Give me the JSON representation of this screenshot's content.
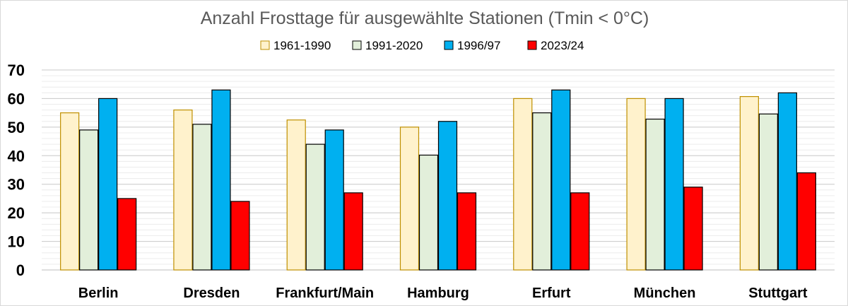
{
  "chart_data": {
    "type": "bar",
    "title": "Anzahl Frosttage für ausgewählte Stationen (Tmin < 0°C)",
    "xlabel": "",
    "ylabel": "",
    "categories": [
      "Berlin",
      "Dresden",
      "Frankfurt/Main",
      "Hamburg",
      "Erfurt",
      "München",
      "Stuttgart"
    ],
    "series": [
      {
        "name": "1961-1990",
        "values": [
          55,
          56,
          52.5,
          50,
          60,
          60,
          60.7
        ],
        "fill": "#fff2cc",
        "stroke": "#bf9000"
      },
      {
        "name": "1991-2020",
        "values": [
          49,
          51,
          44,
          40.2,
          55,
          52.8,
          54.6
        ],
        "fill": "#e2efda",
        "stroke": "#000000"
      },
      {
        "name": "1996/97",
        "values": [
          60,
          63,
          49,
          52,
          63,
          60,
          62
        ],
        "fill": "#00b0f0",
        "stroke": "#000000"
      },
      {
        "name": "2023/24",
        "values": [
          25,
          24,
          27,
          27,
          27,
          29,
          34
        ],
        "fill": "#ff0000",
        "stroke": "#000000"
      }
    ],
    "ylim": [
      0,
      70
    ],
    "yticks": [
      0,
      10,
      20,
      30,
      40,
      50,
      60,
      70
    ],
    "minor_grid_step": 2,
    "grid": true,
    "legend_position": "top"
  }
}
